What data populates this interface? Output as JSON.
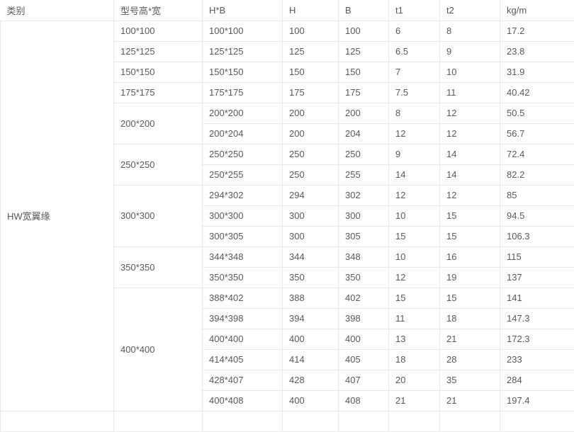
{
  "page": {
    "background": "#ffffff",
    "border_color": "#e8e8e8",
    "text_color": "#595959"
  },
  "table": {
    "headers": [
      "类别",
      "型号高*宽",
      "H*B",
      "H",
      "B",
      "t1",
      "t2",
      "kg/m"
    ],
    "category": {
      "label": "HW宽翼缘"
    },
    "groups": [
      {
        "model": "100*100",
        "rows": [
          [
            "100*100",
            "100",
            "100",
            "6",
            "8",
            "17.2"
          ]
        ]
      },
      {
        "model": "125*125",
        "rows": [
          [
            "125*125",
            "125",
            "125",
            "6.5",
            "9",
            "23.8"
          ]
        ]
      },
      {
        "model": "150*150",
        "rows": [
          [
            "150*150",
            "150",
            "150",
            "7",
            "10",
            "31.9"
          ]
        ]
      },
      {
        "model": "175*175",
        "rows": [
          [
            "175*175",
            "175",
            "175",
            "7.5",
            "11",
            "40.42"
          ]
        ]
      },
      {
        "model": "200*200",
        "rows": [
          [
            "200*200",
            "200",
            "200",
            "8",
            "12",
            "50.5"
          ],
          [
            "200*204",
            "200",
            "204",
            "12",
            "12",
            "56.7"
          ]
        ]
      },
      {
        "model": "250*250",
        "rows": [
          [
            "250*250",
            "250",
            "250",
            "9",
            "14",
            "72.4"
          ],
          [
            "250*255",
            "250",
            "255",
            "14",
            "14",
            "82.2"
          ]
        ]
      },
      {
        "model": "300*300",
        "rows": [
          [
            "294*302",
            "294",
            "302",
            "12",
            "12",
            "85"
          ],
          [
            "300*300",
            "300",
            "300",
            "10",
            "15",
            "94.5"
          ],
          [
            "300*305",
            "300",
            "305",
            "15",
            "15",
            "106.3"
          ]
        ]
      },
      {
        "model": "350*350",
        "rows": [
          [
            "344*348",
            "344",
            "348",
            "10",
            "16",
            "115"
          ],
          [
            "350*350",
            "350",
            "350",
            "12",
            "19",
            "137"
          ]
        ]
      },
      {
        "model": "400*400",
        "rows": [
          [
            "388*402",
            "388",
            "402",
            "15",
            "15",
            "141"
          ],
          [
            "394*398",
            "394",
            "398",
            "11",
            "18",
            "147.3"
          ],
          [
            "400*400",
            "400",
            "400",
            "13",
            "21",
            "172.3"
          ],
          [
            "414*405",
            "414",
            "405",
            "18",
            "28",
            "233"
          ],
          [
            "428*407",
            "428",
            "407",
            "20",
            "35",
            "284"
          ],
          [
            "400*408",
            "400",
            "408",
            "21",
            "21",
            "197.4"
          ]
        ]
      }
    ]
  }
}
